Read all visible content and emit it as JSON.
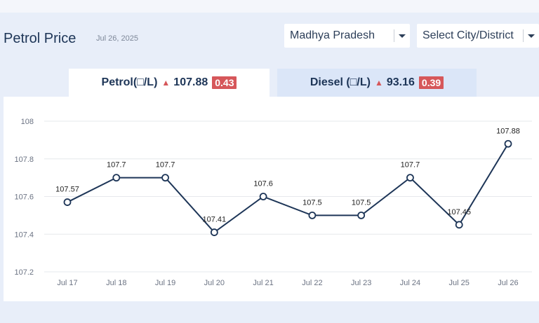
{
  "header": {
    "title": "Petrol Price",
    "date": "Jul 26, 2025"
  },
  "filters": {
    "state": "Madhya Pradesh",
    "city": "Select City/District"
  },
  "tabs": [
    {
      "label": "Petrol(□/L)",
      "price": "107.88",
      "change": "0.43"
    },
    {
      "label": "Diesel (□/L)",
      "price": "93.16",
      "change": "0.39"
    }
  ],
  "colors": {
    "line": "#1d3557",
    "up": "#d6575a",
    "active_tab": "#ffffff",
    "inactive_tab": "#dbe6f8"
  },
  "chart_data": {
    "type": "line",
    "categories": [
      "Jul 17",
      "Jul 18",
      "Jul 19",
      "Jul 20",
      "Jul 21",
      "Jul 22",
      "Jul 23",
      "Jul 24",
      "Jul 25",
      "Jul 26"
    ],
    "values": [
      107.57,
      107.7,
      107.7,
      107.41,
      107.6,
      107.5,
      107.5,
      107.7,
      107.45,
      107.88
    ],
    "labels": [
      "107.57",
      "107.7",
      "107.7",
      "107.41",
      "107.6",
      "107.5",
      "107.5",
      "107.7",
      "107.45",
      "107.88"
    ],
    "yticks": [
      "108",
      "107.8",
      "107.6",
      "107.4",
      "107.2"
    ],
    "ylim": [
      107.2,
      108
    ],
    "grid": true
  }
}
